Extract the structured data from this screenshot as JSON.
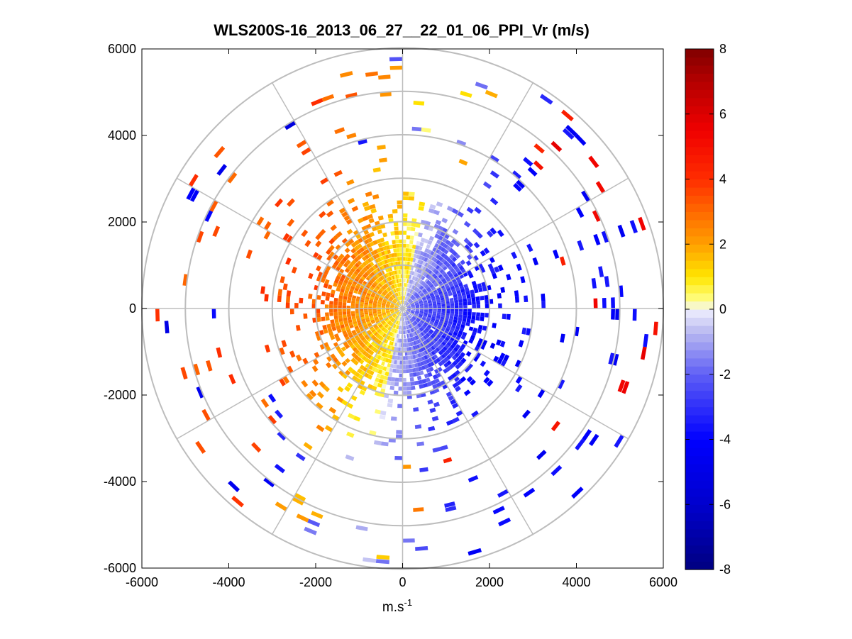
{
  "chart_data": {
    "type": "heatmap",
    "subtype": "polar-ppi",
    "title": "WLS200S-16_2013_06_27__22_01_06_PPI_Vr (m/s)",
    "xlabel_base": "m.s",
    "xlabel_exponent": "-1",
    "xlabel": "m.s-1",
    "ylabel": "",
    "xlim": [
      -6000,
      6000
    ],
    "ylim": [
      -6000,
      6000
    ],
    "xticks": [
      -6000,
      -4000,
      -2000,
      0,
      2000,
      4000,
      6000
    ],
    "yticks": [
      6000,
      4000,
      2000,
      0,
      -2000,
      -4000,
      -6000
    ],
    "xtick_labels": [
      "-6000",
      "-4000",
      "-2000",
      "0",
      "2000",
      "4000",
      "6000"
    ],
    "ytick_labels": [
      "6000",
      "4000",
      "2000",
      "0",
      "-2000",
      "-4000",
      "-6000"
    ],
    "polar_grid": {
      "range_rings": [
        1000,
        2000,
        3000,
        4000,
        5000,
        6000
      ],
      "azimuth_spokes_deg": [
        0,
        30,
        60,
        90,
        120,
        150,
        180,
        210,
        240,
        270,
        300,
        330
      ]
    },
    "colorbar": {
      "limits": [
        -8,
        8
      ],
      "ticks": [
        8,
        6,
        4,
        2,
        0,
        -2,
        -4,
        -6,
        -8
      ],
      "tick_labels": [
        "8",
        "6",
        "4",
        "2",
        "0",
        "-2",
        "-4",
        "-6",
        "-8"
      ],
      "colormap": "blue-white-yellow-red"
    },
    "field_description": {
      "core_max_range": 2100,
      "west_half_velocity": [
        0.5,
        3.5
      ],
      "east_half_velocity": [
        -0.5,
        -4.0
      ],
      "scattered_returns_out_to": 5900
    }
  }
}
